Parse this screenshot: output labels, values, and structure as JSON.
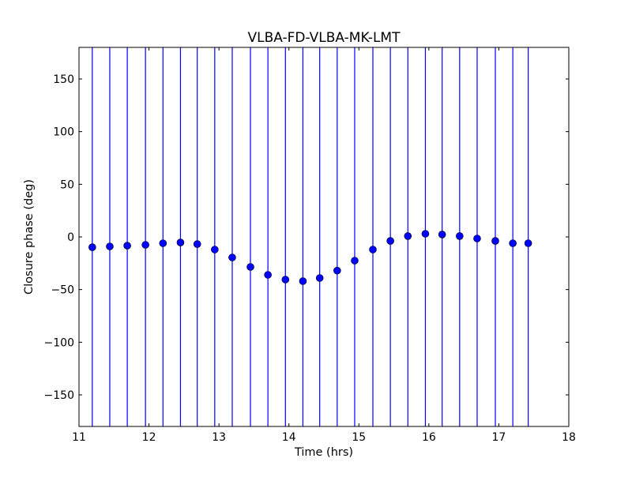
{
  "chart_data": {
    "type": "scatter",
    "title": "VLBA-FD-VLBA-MK-LMT",
    "xlabel": "Time (hrs)",
    "ylabel": "Closure phase (deg)",
    "xlim": [
      11,
      18
    ],
    "ylim": [
      -180,
      180
    ],
    "xticks": [
      11,
      12,
      13,
      14,
      15,
      16,
      17,
      18
    ],
    "yticks": [
      -150,
      -100,
      -50,
      0,
      50,
      100,
      150
    ],
    "ytick_labels": [
      "−150",
      "−100",
      "−50",
      "0",
      "50",
      "100",
      "150"
    ],
    "grid": false,
    "marker_color": "#0000ff",
    "errorbar_color": "#0000ff",
    "errorbars": "extend beyond axes range",
    "x": [
      11.19,
      11.44,
      11.69,
      11.95,
      12.2,
      12.45,
      12.69,
      12.94,
      13.19,
      13.45,
      13.7,
      13.95,
      14.2,
      14.44,
      14.69,
      14.94,
      15.2,
      15.45,
      15.7,
      15.95,
      16.19,
      16.44,
      16.69,
      16.95,
      17.2,
      17.42
    ],
    "y": [
      -9.8,
      -9,
      -8.3,
      -7.5,
      -6,
      -5.3,
      -6.8,
      -12,
      -19.5,
      -28.5,
      -36,
      -40.5,
      -42,
      -39,
      -32,
      -22.5,
      -12,
      -3.8,
      0.8,
      3,
      2.3,
      0.8,
      -1.5,
      -3.8,
      -6,
      -6
    ]
  }
}
